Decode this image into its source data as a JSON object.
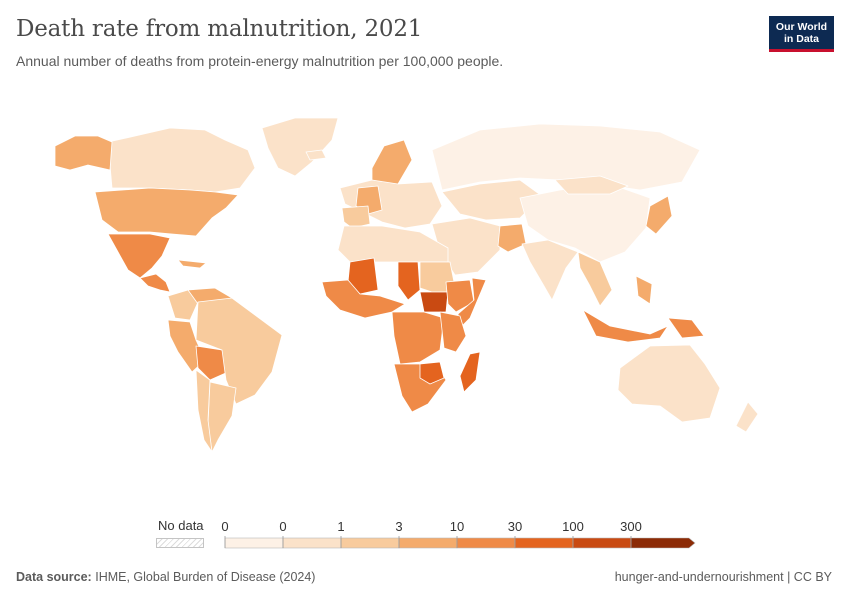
{
  "header": {
    "title": "Death rate from malnutrition, 2021",
    "subtitle": "Annual number of deaths from protein-energy malnutrition per 100,000 people.",
    "logo_line1": "Our World",
    "logo_line2": "in Data"
  },
  "legend": {
    "no_data_label": "No data",
    "tick_labels": [
      "0",
      "0",
      "1",
      "3",
      "10",
      "30",
      "100",
      "300"
    ],
    "colors": [
      "#fdf1e6",
      "#fbe2c9",
      "#f8cb9d",
      "#f4ab6c",
      "#ef8a47",
      "#e4641f",
      "#c94a12",
      "#8c2b06"
    ],
    "no_data_color": "#e8e8e8"
  },
  "map": {
    "ocean_color": "#ffffff",
    "border_color": "#ffffff",
    "regions": [
      {
        "name": "Canada",
        "cls": 1
      },
      {
        "name": "Alaska",
        "cls": 3
      },
      {
        "name": "Greenland",
        "cls": 1
      },
      {
        "name": "United States",
        "cls": 3
      },
      {
        "name": "Mexico",
        "cls": 4
      },
      {
        "name": "Central America",
        "cls": 4
      },
      {
        "name": "Caribbean",
        "cls": 3
      },
      {
        "name": "Colombia",
        "cls": 2
      },
      {
        "name": "Venezuela",
        "cls": 3
      },
      {
        "name": "Peru",
        "cls": 3
      },
      {
        "name": "Bolivia",
        "cls": 4
      },
      {
        "name": "Brazil",
        "cls": 2
      },
      {
        "name": "Argentina",
        "cls": 2
      },
      {
        "name": "Chile",
        "cls": 2
      },
      {
        "name": "Iceland",
        "cls": 1
      },
      {
        "name": "Scandinavia",
        "cls": 3
      },
      {
        "name": "Europe",
        "cls": 1
      },
      {
        "name": "France",
        "cls": 3
      },
      {
        "name": "Iberia",
        "cls": 2
      },
      {
        "name": "Russia",
        "cls": 0
      },
      {
        "name": "Central Asia",
        "cls": 1
      },
      {
        "name": "China",
        "cls": 0
      },
      {
        "name": "Mongolia",
        "cls": 1
      },
      {
        "name": "Middle East",
        "cls": 1
      },
      {
        "name": "Afghanistan",
        "cls": 3
      },
      {
        "name": "India",
        "cls": 1
      },
      {
        "name": "Southeast Asia",
        "cls": 2
      },
      {
        "name": "Indonesia",
        "cls": 4
      },
      {
        "name": "Philippines",
        "cls": 3
      },
      {
        "name": "Japan",
        "cls": 3
      },
      {
        "name": "Papua New Guinea",
        "cls": 4
      },
      {
        "name": "Australia",
        "cls": 1
      },
      {
        "name": "New Zealand",
        "cls": 1
      },
      {
        "name": "North Africa",
        "cls": 1
      },
      {
        "name": "Mali",
        "cls": 5
      },
      {
        "name": "West Africa",
        "cls": 4
      },
      {
        "name": "Chad",
        "cls": 5
      },
      {
        "name": "Sudan",
        "cls": 2
      },
      {
        "name": "South Sudan",
        "cls": 6
      },
      {
        "name": "Ethiopia",
        "cls": 4
      },
      {
        "name": "Somalia",
        "cls": 4
      },
      {
        "name": "Central Africa",
        "cls": 4
      },
      {
        "name": "East Africa",
        "cls": 4
      },
      {
        "name": "Southern Africa",
        "cls": 4
      },
      {
        "name": "Zimbabwe",
        "cls": 5
      },
      {
        "name": "Madagascar",
        "cls": 5
      }
    ]
  },
  "footer": {
    "source_label": "Data source:",
    "source_text": "IHME, Global Burden of Disease (2024)",
    "right_text": "hunger-and-undernourishment | CC BY"
  }
}
